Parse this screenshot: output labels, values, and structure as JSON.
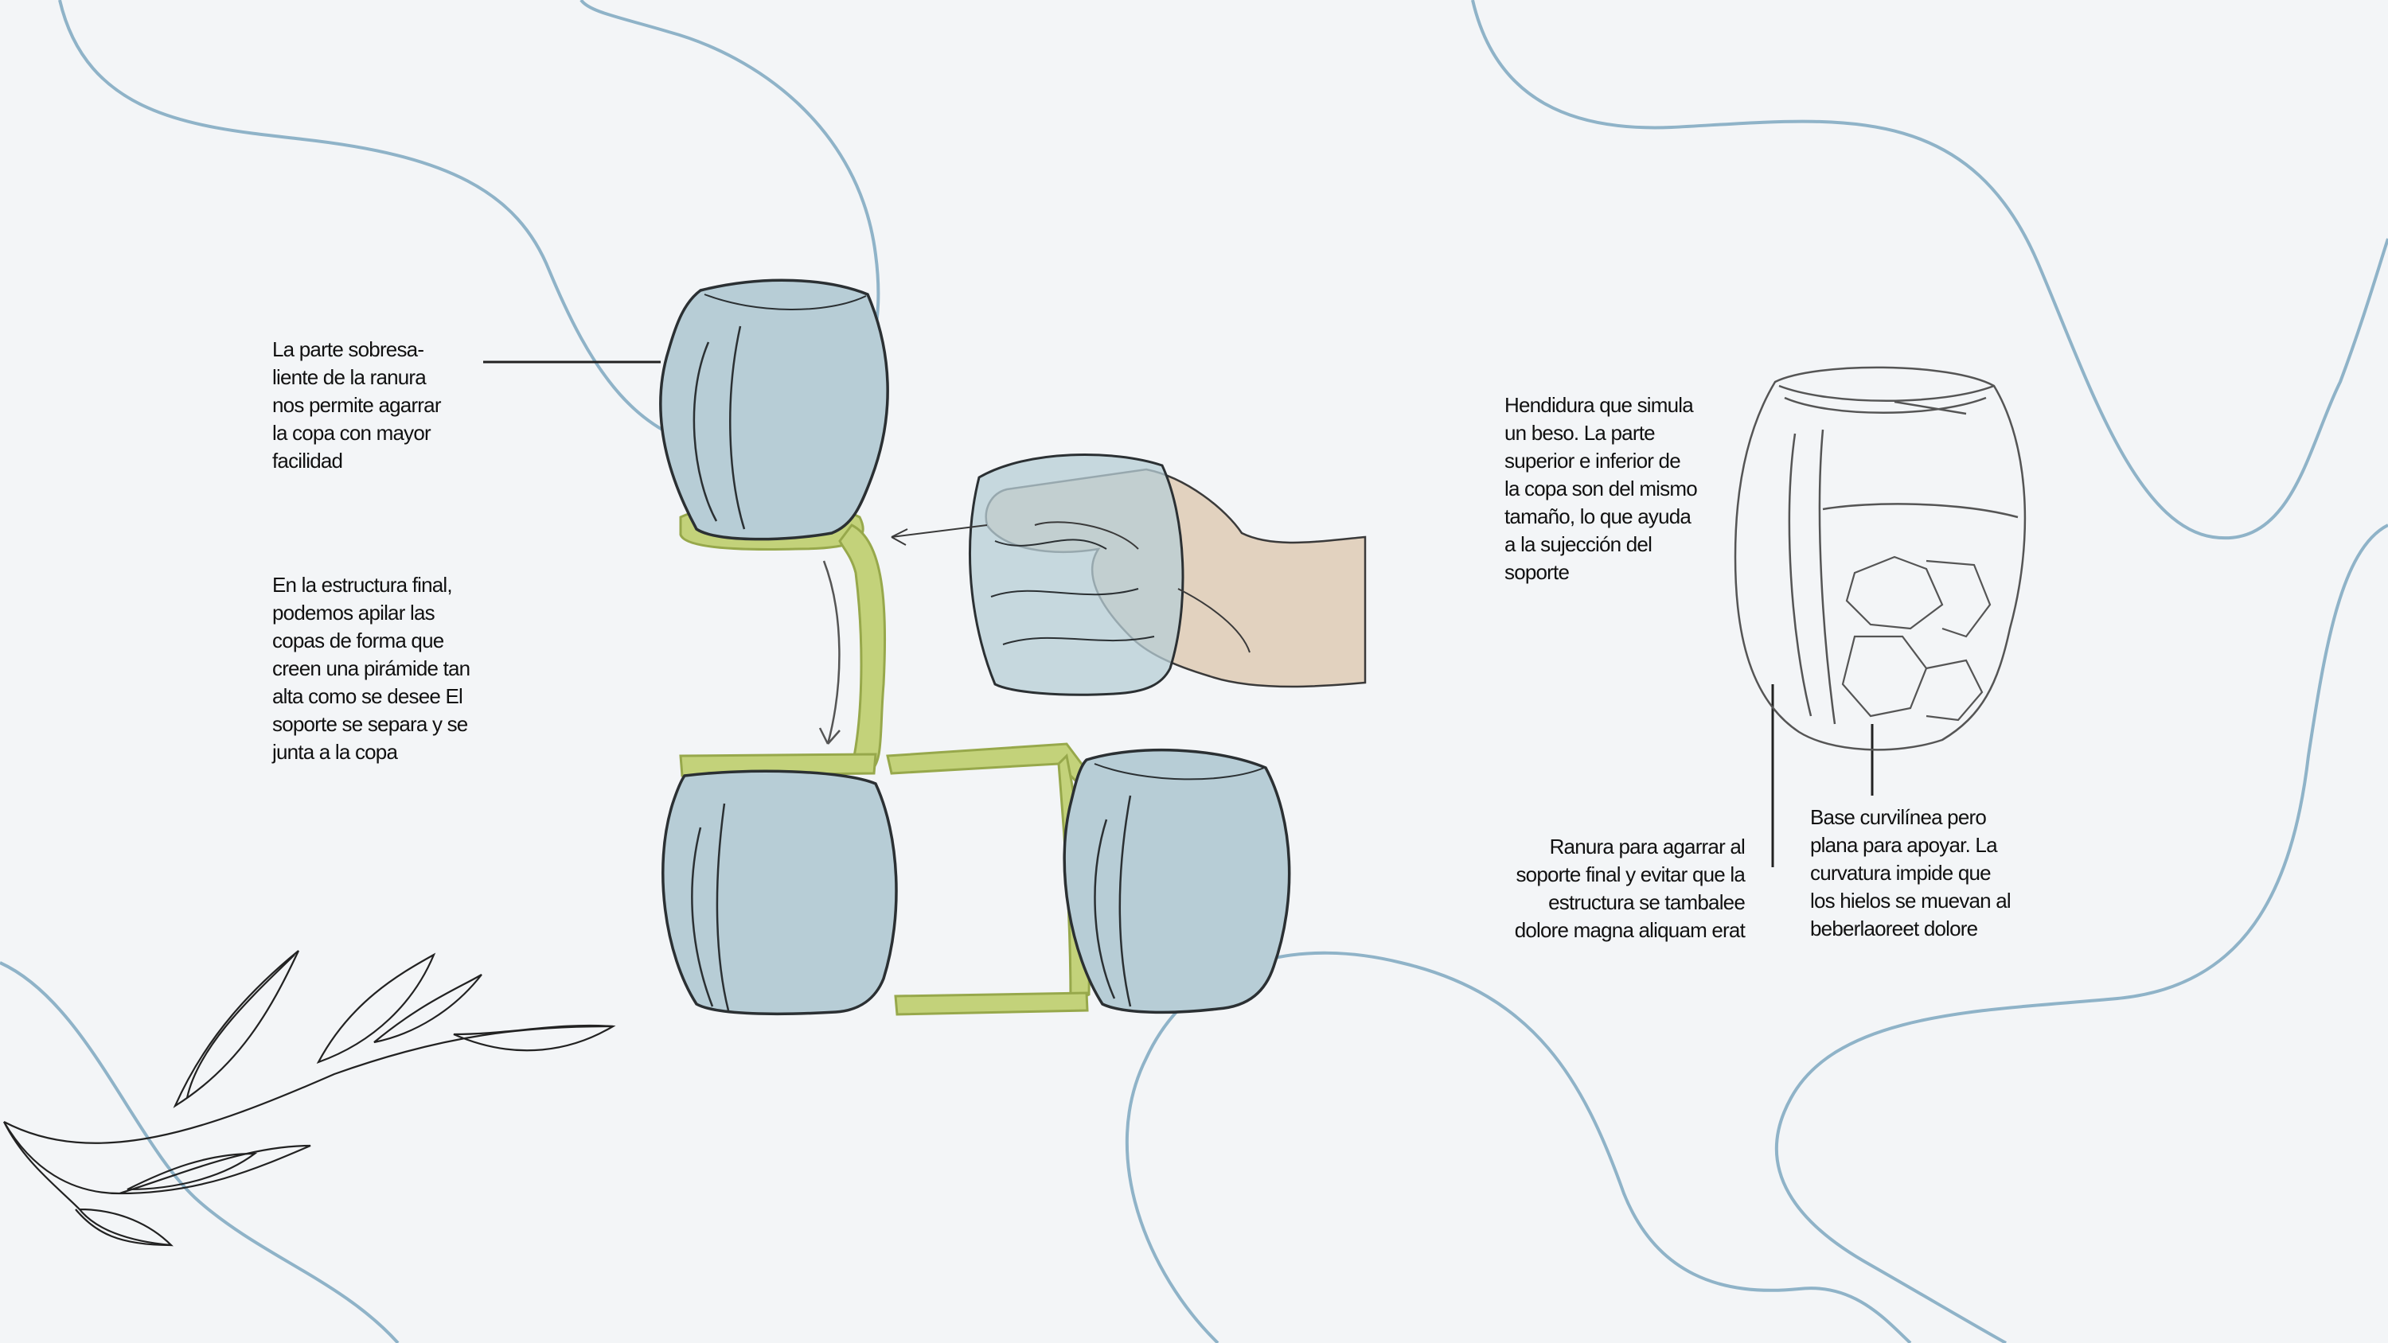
{
  "colors": {
    "background": "#f3f5f7",
    "wave": "#8fb3c8",
    "glass_fill": "#b7cdd6",
    "glass_outline": "#2b3033",
    "support": "#c3d27a",
    "support_outline": "#97a84b",
    "hand": "#e2d2bf",
    "text": "#111111"
  },
  "annotations": {
    "grip": "La parte sobresa-\nliente de la ranura\nnos permite agarrar\nla copa con mayor\nfacilidad",
    "stacking": "En la estructura final,\npodemos apilar las\ncopas de forma que\ncreen una pirámide tan\nalta como se desee El\nsoporte se separa y se\njunta a la copa",
    "kiss_slot": "Hendidura que simula\nun beso. La parte\nsuperior e inferior de\nla copa son del mismo\ntamaño, lo que ayuda\na la sujección del\nsoporte",
    "groove": "Ranura para agarrar al\nsoporte final y evitar que la\nestructura se tambalee\ndolore magna aliquam erat",
    "base": "Base curvilínea pero\nplana para apoyar. La\ncurvatura impide que\nlos hielos se muevan al\nbeberlaoreet dolore"
  },
  "icons": [
    "leaf-branch-icon",
    "ice-cubes-icon"
  ]
}
